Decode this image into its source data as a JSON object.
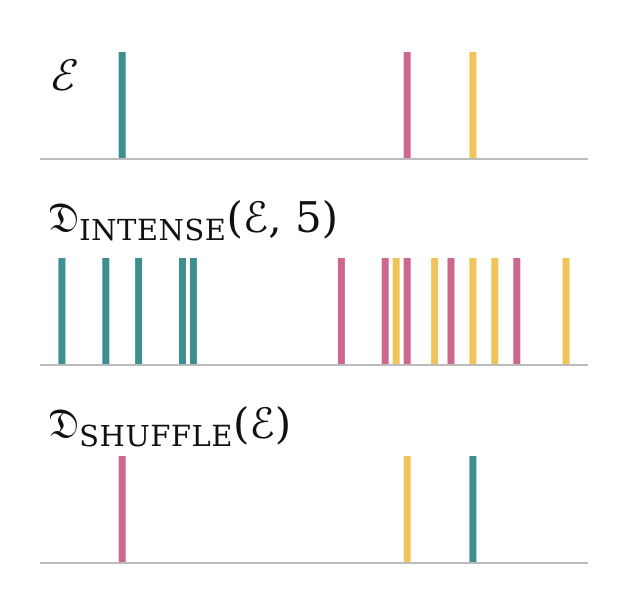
{
  "colors": {
    "teal": "#3e9090",
    "pink": "#cc6890",
    "yellow": "#f0c45a",
    "baseline": "#bbbbbb",
    "text": "#111111"
  },
  "panels": [
    {
      "id": "original",
      "label": {
        "main": "ℰ",
        "sub": "",
        "arg": ""
      },
      "events": [
        {
          "pos": 0.15,
          "color": "teal"
        },
        {
          "pos": 0.67,
          "color": "pink"
        },
        {
          "pos": 0.79,
          "color": "yellow"
        }
      ]
    },
    {
      "id": "intense",
      "label": {
        "main": "𝔇",
        "sub": "INTENSE",
        "arg": "(ℰ, 5)"
      },
      "events": [
        {
          "pos": 0.04,
          "color": "teal"
        },
        {
          "pos": 0.12,
          "color": "teal"
        },
        {
          "pos": 0.18,
          "color": "teal"
        },
        {
          "pos": 0.26,
          "color": "teal"
        },
        {
          "pos": 0.28,
          "color": "teal"
        },
        {
          "pos": 0.55,
          "color": "pink"
        },
        {
          "pos": 0.63,
          "color": "pink"
        },
        {
          "pos": 0.65,
          "color": "yellow"
        },
        {
          "pos": 0.67,
          "color": "pink"
        },
        {
          "pos": 0.72,
          "color": "yellow"
        },
        {
          "pos": 0.75,
          "color": "pink"
        },
        {
          "pos": 0.79,
          "color": "yellow"
        },
        {
          "pos": 0.83,
          "color": "yellow"
        },
        {
          "pos": 0.87,
          "color": "pink"
        },
        {
          "pos": 0.96,
          "color": "yellow"
        }
      ]
    },
    {
      "id": "shuffle",
      "label": {
        "main": "𝔇",
        "sub": "SHUFFLE",
        "arg": "(ℰ)"
      },
      "events": [
        {
          "pos": 0.15,
          "color": "pink"
        },
        {
          "pos": 0.67,
          "color": "yellow"
        },
        {
          "pos": 0.79,
          "color": "teal"
        }
      ]
    }
  ]
}
